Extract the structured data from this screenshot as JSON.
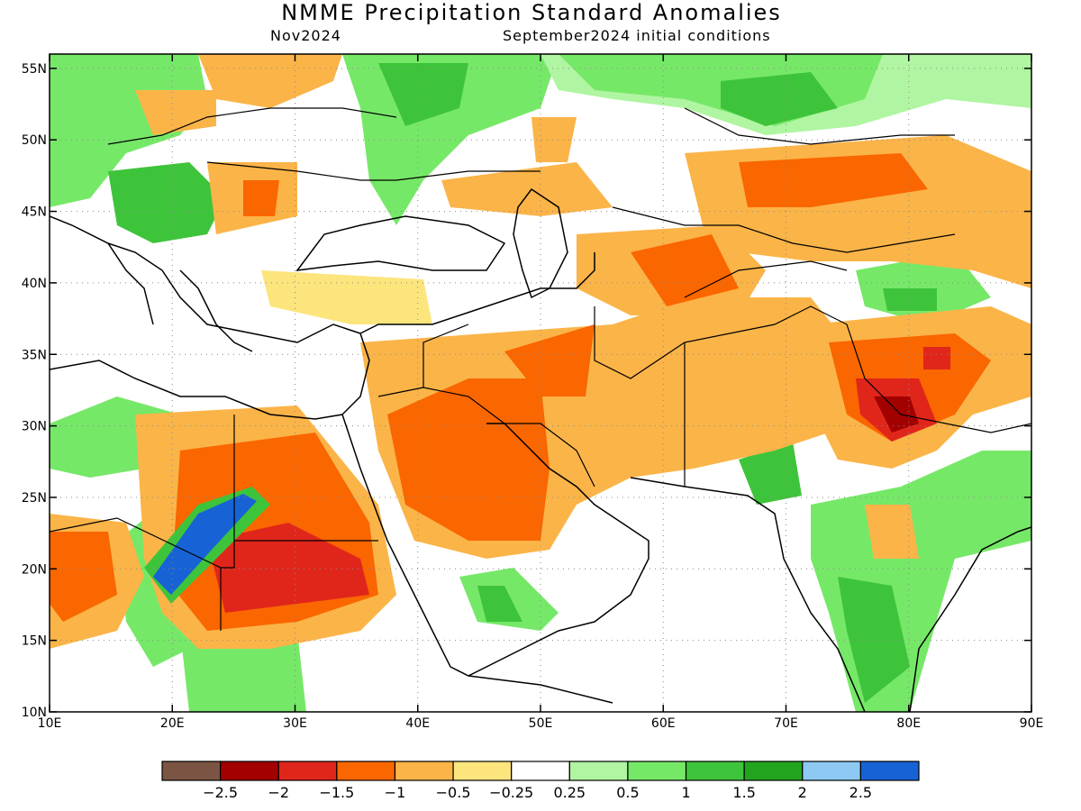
{
  "header": {
    "title": "NMME Precipitation Standard Anomalies",
    "target_month": "Nov2024",
    "initial_conditions": "September2024 initial conditions"
  },
  "map": {
    "lon_range": [
      10,
      90
    ],
    "lat_range": [
      10,
      56
    ],
    "x_ticks": [
      "10E",
      "20E",
      "30E",
      "40E",
      "50E",
      "60E",
      "70E",
      "80E",
      "90E"
    ],
    "y_ticks": [
      "10N",
      "15N",
      "20N",
      "25N",
      "30N",
      "35N",
      "40N",
      "45N",
      "50N",
      "55N"
    ]
  },
  "colorbar": {
    "colors": [
      "#7b5543",
      "#a30000",
      "#e0261a",
      "#fa6600",
      "#fbb448",
      "#fde57e",
      "#ffffff",
      "#b0f5a1",
      "#76e868",
      "#3ec43b",
      "#22a41f",
      "#8dc9f3",
      "#1763d6"
    ],
    "labels": [
      "−2.5",
      "−2",
      "−1.5",
      "−1",
      "−0.5",
      "−0.25",
      "0.25",
      "0.5",
      "1",
      "1.5",
      "2",
      "2.5"
    ]
  }
}
